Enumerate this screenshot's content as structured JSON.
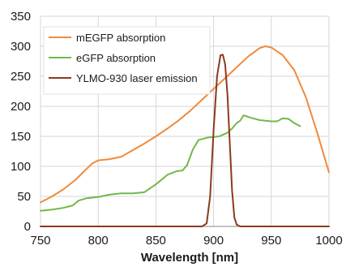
{
  "chart_data": {
    "type": "line",
    "xlabel": "Wavelength [nm]",
    "ylabel": "",
    "title": "",
    "xlim": [
      750,
      1000
    ],
    "ylim": [
      0,
      350
    ],
    "x_ticks": [
      750,
      800,
      850,
      900,
      950,
      1000
    ],
    "y_ticks": [
      0,
      50,
      100,
      150,
      200,
      250,
      300,
      350
    ],
    "grid": true,
    "legend_position": "top-left",
    "series": [
      {
        "name": "mEGFP absorption",
        "color": "#f08a3c",
        "points": [
          [
            750,
            40
          ],
          [
            760,
            50
          ],
          [
            770,
            62
          ],
          [
            780,
            77
          ],
          [
            790,
            96
          ],
          [
            795,
            105
          ],
          [
            800,
            110
          ],
          [
            810,
            112
          ],
          [
            820,
            116
          ],
          [
            830,
            127
          ],
          [
            840,
            138
          ],
          [
            850,
            150
          ],
          [
            860,
            163
          ],
          [
            870,
            177
          ],
          [
            880,
            193
          ],
          [
            890,
            211
          ],
          [
            900,
            229
          ],
          [
            910,
            247
          ],
          [
            920,
            265
          ],
          [
            930,
            283
          ],
          [
            940,
            297
          ],
          [
            945,
            300
          ],
          [
            950,
            298
          ],
          [
            960,
            285
          ],
          [
            970,
            260
          ],
          [
            980,
            215
          ],
          [
            990,
            155
          ],
          [
            1000,
            90
          ]
        ]
      },
      {
        "name": "eGFP absorption",
        "color": "#72b84a",
        "points": [
          [
            750,
            26
          ],
          [
            760,
            28
          ],
          [
            770,
            31
          ],
          [
            778,
            35
          ],
          [
            783,
            43
          ],
          [
            790,
            47
          ],
          [
            800,
            49
          ],
          [
            810,
            53
          ],
          [
            820,
            55
          ],
          [
            830,
            55
          ],
          [
            840,
            57
          ],
          [
            850,
            70
          ],
          [
            860,
            86
          ],
          [
            868,
            92
          ],
          [
            873,
            93
          ],
          [
            877,
            102
          ],
          [
            882,
            128
          ],
          [
            887,
            144
          ],
          [
            895,
            148
          ],
          [
            905,
            150
          ],
          [
            912,
            156
          ],
          [
            916,
            163
          ],
          [
            920,
            172
          ],
          [
            923,
            176
          ],
          [
            926,
            185
          ],
          [
            932,
            181
          ],
          [
            940,
            177
          ],
          [
            950,
            175
          ],
          [
            955,
            175
          ],
          [
            960,
            180
          ],
          [
            965,
            179
          ],
          [
            970,
            172
          ],
          [
            975,
            167
          ]
        ]
      },
      {
        "name": "YLMO-930 laser emission",
        "color": "#8b3a1e",
        "points": [
          [
            750,
            0
          ],
          [
            885,
            0
          ],
          [
            890,
            0
          ],
          [
            894,
            5
          ],
          [
            897,
            50
          ],
          [
            900,
            160
          ],
          [
            903,
            250
          ],
          [
            906,
            285
          ],
          [
            908,
            286
          ],
          [
            910,
            270
          ],
          [
            912,
            220
          ],
          [
            914,
            140
          ],
          [
            916,
            60
          ],
          [
            918,
            15
          ],
          [
            920,
            3
          ],
          [
            923,
            0
          ],
          [
            1000,
            0
          ]
        ]
      }
    ]
  }
}
